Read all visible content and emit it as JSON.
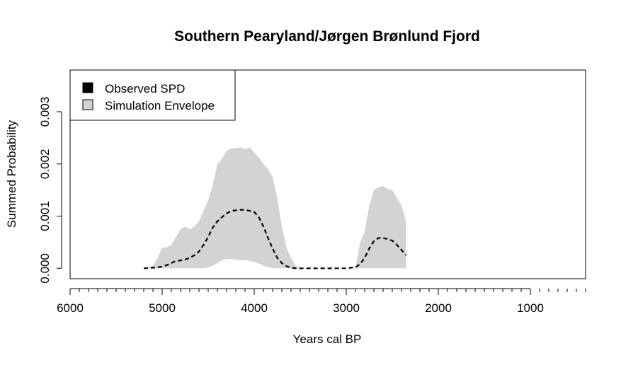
{
  "chart_data": {
    "type": "area",
    "title": "Southern Pearyland/Jørgen Brønlund Fjord",
    "xlabel": "Years cal BP",
    "ylabel": "Summed Probability",
    "xlim": [
      6000,
      400
    ],
    "x_reversed": true,
    "ylim": [
      -0.0002,
      0.0038
    ],
    "x_ticks": [
      6000,
      5000,
      4000,
      3000,
      2000,
      1000
    ],
    "x_tick_labels": [
      "6000",
      "5000",
      "4000",
      "3000",
      "2000",
      "1000"
    ],
    "x_minor_tick_step": 100,
    "y_ticks": [
      0,
      0.001,
      0.002,
      0.003
    ],
    "y_tick_labels": [
      "0.000",
      "0.001",
      "0.002",
      "0.003"
    ],
    "grid": false,
    "legend": {
      "position": "top-left",
      "entries": [
        {
          "label": "Observed SPD",
          "color": "#000000"
        },
        {
          "label": "Simulation Envelope",
          "color": "#d3d3d3"
        }
      ]
    },
    "series": [
      {
        "name": "Simulation Envelope",
        "kind": "band",
        "color": "#d3d3d3",
        "x": [
          5200,
          5100,
          5050,
          5000,
          4950,
          4900,
          4850,
          4800,
          4750,
          4700,
          4650,
          4600,
          4550,
          4500,
          4450,
          4400,
          4350,
          4300,
          4250,
          4200,
          4150,
          4100,
          4050,
          4000,
          3950,
          3900,
          3850,
          3800,
          3750,
          3700,
          3650,
          3600,
          3550,
          3500,
          2900,
          2850,
          2800,
          2750,
          2700,
          2650,
          2600,
          2550,
          2500,
          2450,
          2400,
          2350
        ],
        "lower": [
          0,
          0,
          0,
          0,
          0,
          0,
          0,
          0,
          0,
          0,
          0,
          0,
          0,
          2e-05,
          5e-05,
          0.0001,
          0.00015,
          0.00018,
          0.00018,
          0.00016,
          0.00015,
          0.00016,
          0.00014,
          0.00012,
          9e-05,
          5e-05,
          2e-05,
          0,
          0,
          0,
          0,
          0,
          0,
          0,
          0,
          0,
          0,
          0,
          0,
          0,
          0,
          0,
          0,
          0,
          0,
          0
        ],
        "upper": [
          0,
          5e-05,
          0.0002,
          0.0004,
          0.0004,
          0.00045,
          0.0006,
          0.00075,
          0.0008,
          0.00075,
          0.0008,
          0.0009,
          0.0011,
          0.0013,
          0.0016,
          0.002,
          0.0021,
          0.00225,
          0.0023,
          0.0023,
          0.00232,
          0.00228,
          0.00232,
          0.00222,
          0.00212,
          0.002,
          0.0019,
          0.00175,
          0.00135,
          0.0008,
          0.0004,
          0.0002,
          5e-05,
          0,
          0,
          0.0005,
          0.0007,
          0.0012,
          0.0015,
          0.00155,
          0.00158,
          0.00152,
          0.0015,
          0.00135,
          0.0012,
          0.0009
        ]
      },
      {
        "name": "Observed SPD",
        "kind": "line",
        "color": "#000000",
        "dash": true,
        "x": [
          5200,
          5100,
          5000,
          4950,
          4900,
          4850,
          4800,
          4750,
          4700,
          4650,
          4600,
          4550,
          4500,
          4450,
          4400,
          4350,
          4300,
          4250,
          4200,
          4150,
          4100,
          4050,
          4000,
          3950,
          3900,
          3850,
          3800,
          3750,
          3700,
          3650,
          3600,
          3550,
          3500,
          3400,
          3200,
          3000,
          2900,
          2850,
          2800,
          2750,
          2700,
          2650,
          2600,
          2550,
          2500,
          2450,
          2400,
          2350
        ],
        "values": [
          0,
          1e-05,
          3e-05,
          6e-05,
          0.0001,
          0.00014,
          0.00015,
          0.00017,
          0.0002,
          0.00025,
          0.00032,
          0.00045,
          0.0006,
          0.00078,
          0.0009,
          0.00098,
          0.00105,
          0.0011,
          0.00111,
          0.00112,
          0.00112,
          0.0011,
          0.00108,
          0.00098,
          0.0008,
          0.00058,
          0.00038,
          0.0002,
          0.0001,
          4e-05,
          1e-05,
          0,
          0,
          0,
          0,
          0,
          2e-05,
          8e-05,
          0.0002,
          0.00038,
          0.00052,
          0.00058,
          0.00058,
          0.00056,
          0.00053,
          0.00045,
          0.00035,
          0.00025
        ]
      }
    ]
  }
}
